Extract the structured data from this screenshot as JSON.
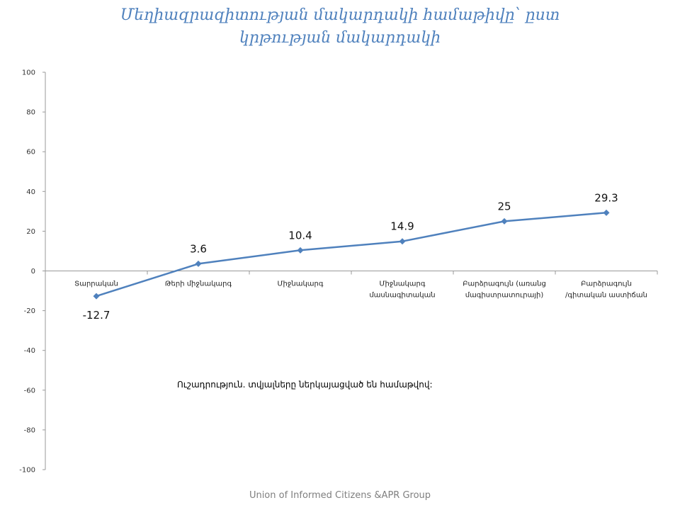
{
  "chart_data": {
    "type": "line",
    "title_lines": [
      "Մեղիազրազիտության մակարդակի համաթիվը՝ ըստ",
      "կրթության մակարդակի"
    ],
    "categories": [
      [
        "Տարրական"
      ],
      [
        "Թերի միջնակարգ"
      ],
      [
        "Միջնակարգ"
      ],
      [
        "Միջնակարգ",
        "մասնագիտական"
      ],
      [
        "Բարձրագույն (առանց",
        "մագիստրատուրայի)"
      ],
      [
        "Բարձրագույն",
        "/գիտական աստիճան"
      ]
    ],
    "series": [
      {
        "values": [
          -12.7,
          3.6,
          10.4,
          14.9,
          25,
          29.3
        ]
      }
    ],
    "data_labels": [
      "-12.7",
      "3.6",
      "10.4",
      "14.9",
      "25",
      "29.3"
    ],
    "y_ticks": [
      100,
      80,
      60,
      40,
      20,
      0,
      -20,
      -40,
      -60,
      -80,
      -100
    ],
    "ylim": [
      -100,
      100
    ],
    "grid": false,
    "legend": "none",
    "line_color": "#4f81bd",
    "axis_color": "#999999"
  },
  "note": "Ուշադրություն. տվյալները ներկայացված են համաթվով:",
  "footer": "Union of Informed Citizens &APR Group"
}
